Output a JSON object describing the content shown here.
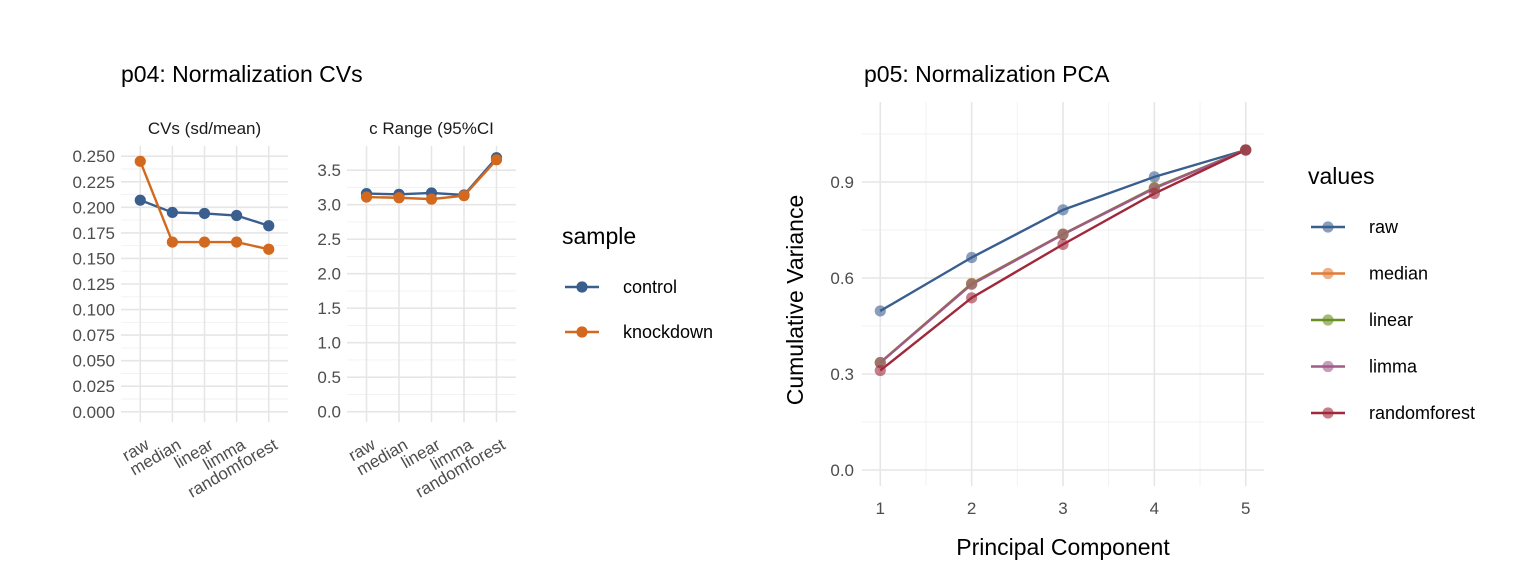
{
  "colors": {
    "control": "#3a5f8f",
    "knockdown": "#d2691e",
    "raw": "#3a5f8f",
    "median": "#e07b39",
    "linear": "#6b8e23",
    "limma": "#a05a86",
    "randomforest": "#a0283a"
  },
  "p04": {
    "title": "p04: Normalization CVs",
    "legend_title": "sample",
    "legend": [
      {
        "key": "control",
        "label": "control"
      },
      {
        "key": "knockdown",
        "label": "knockdown"
      }
    ]
  },
  "p05": {
    "title": "p05: Normalization PCA",
    "legend_title": "values",
    "legend": [
      {
        "key": "raw",
        "label": "raw"
      },
      {
        "key": "median",
        "label": "median"
      },
      {
        "key": "linear",
        "label": "linear"
      },
      {
        "key": "limma",
        "label": "limma"
      },
      {
        "key": "randomforest",
        "label": "randomforest"
      }
    ]
  },
  "chart_data": [
    {
      "type": "line",
      "title": "p04: Normalization CVs",
      "subtitle": "CVs (sd/mean)",
      "categories": [
        "raw",
        "median",
        "linear",
        "limma",
        "randomforest"
      ],
      "ylim": [
        -0.01,
        0.26
      ],
      "yticks": [
        "0.000",
        "0.025",
        "0.050",
        "0.075",
        "0.100",
        "0.125",
        "0.150",
        "0.175",
        "0.200",
        "0.225",
        "0.250"
      ],
      "series": [
        {
          "name": "control",
          "values": [
            0.207,
            0.195,
            0.194,
            0.192,
            0.182
          ]
        },
        {
          "name": "knockdown",
          "values": [
            0.245,
            0.166,
            0.166,
            0.166,
            0.159
          ]
        }
      ],
      "grid": true
    },
    {
      "type": "line",
      "subtitle": "c Range (95%CI",
      "categories": [
        "raw",
        "median",
        "linear",
        "limma",
        "randomforest"
      ],
      "ylim": [
        -0.15,
        3.85
      ],
      "yticks": [
        "0.0",
        "0.5",
        "1.0",
        "1.5",
        "2.0",
        "2.5",
        "3.0",
        "3.5"
      ],
      "series": [
        {
          "name": "control",
          "values": [
            3.16,
            3.15,
            3.17,
            3.14,
            3.68
          ]
        },
        {
          "name": "knockdown",
          "values": [
            3.11,
            3.1,
            3.08,
            3.13,
            3.65
          ]
        }
      ],
      "grid": true
    },
    {
      "type": "line",
      "title": "p05: Normalization PCA",
      "xlabel": "Principal Component",
      "ylabel": "Cumulative Variance",
      "x": [
        1,
        2,
        3,
        4,
        5
      ],
      "xticks": [
        "1",
        "2",
        "3",
        "4",
        "5"
      ],
      "yticks": [
        "0.0",
        "0.3",
        "0.6",
        "0.9"
      ],
      "xlim": [
        0.8,
        5.2
      ],
      "ylim": [
        -0.05,
        1.15
      ],
      "series": [
        {
          "name": "raw",
          "values": [
            0.497,
            0.664,
            0.813,
            0.916,
            1.0
          ]
        },
        {
          "name": "median",
          "values": [
            0.336,
            0.583,
            0.737,
            0.882,
            1.0
          ]
        },
        {
          "name": "linear",
          "values": [
            0.336,
            0.582,
            0.737,
            0.882,
            1.0
          ]
        },
        {
          "name": "limma",
          "values": [
            0.335,
            0.58,
            0.736,
            0.88,
            1.0
          ]
        },
        {
          "name": "randomforest",
          "values": [
            0.311,
            0.538,
            0.705,
            0.864,
            1.0
          ]
        }
      ],
      "legend": "right",
      "grid": true
    }
  ]
}
